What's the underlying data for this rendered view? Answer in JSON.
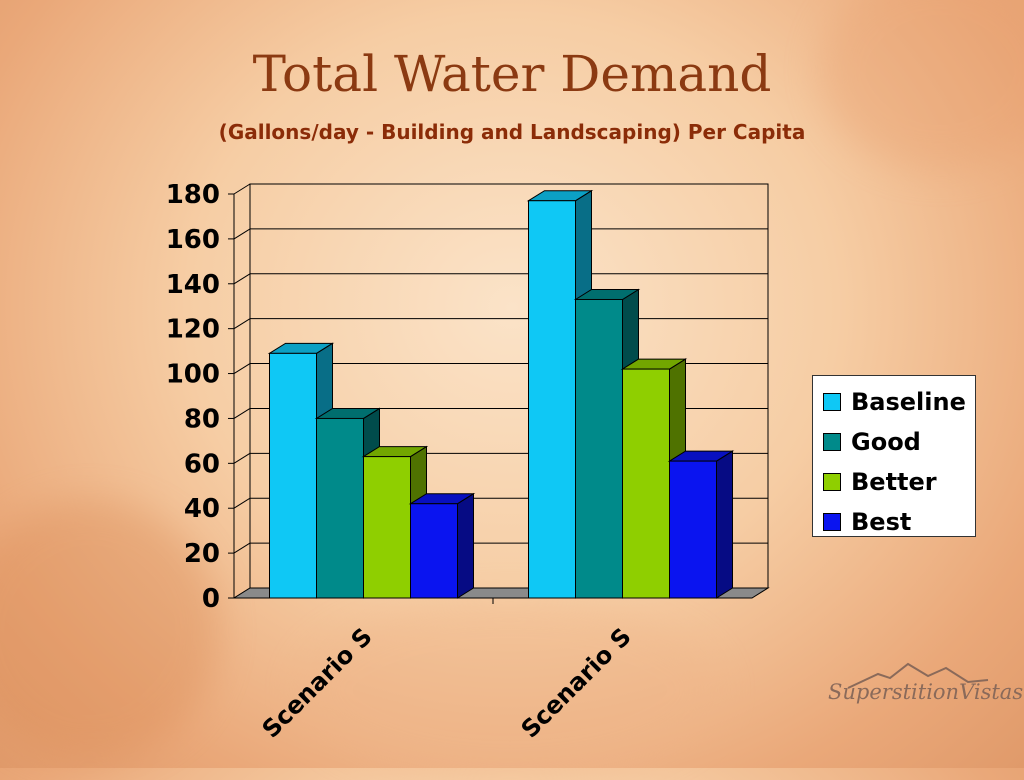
{
  "title": "Total Water Demand",
  "subtitle": "(Gallons/day - Building and Landscaping) Per Capita",
  "logo_text": "SuperstitionVistas",
  "chart_data": {
    "type": "bar",
    "title": "Total Water Demand",
    "subtitle": "(Gallons/day - Building and Landscaping) Per Capita",
    "categories": [
      "Scenario S",
      "Scenario S"
    ],
    "series": [
      {
        "name": "Baseline",
        "values": [
          109,
          177
        ],
        "color": "#0fc8f5"
      },
      {
        "name": "Good",
        "values": [
          80,
          133
        ],
        "color": "#008a8a"
      },
      {
        "name": "Better",
        "values": [
          63,
          102
        ],
        "color": "#8fcf00"
      },
      {
        "name": "Best",
        "values": [
          42,
          61
        ],
        "color": "#0a14f0"
      }
    ],
    "yticks": [
      "0",
      "20",
      "40",
      "60",
      "80",
      "100",
      "120",
      "140",
      "160",
      "180"
    ],
    "ylim": [
      0,
      180
    ],
    "grid": true,
    "legend_position": "right",
    "xlabel": "",
    "ylabel": ""
  }
}
